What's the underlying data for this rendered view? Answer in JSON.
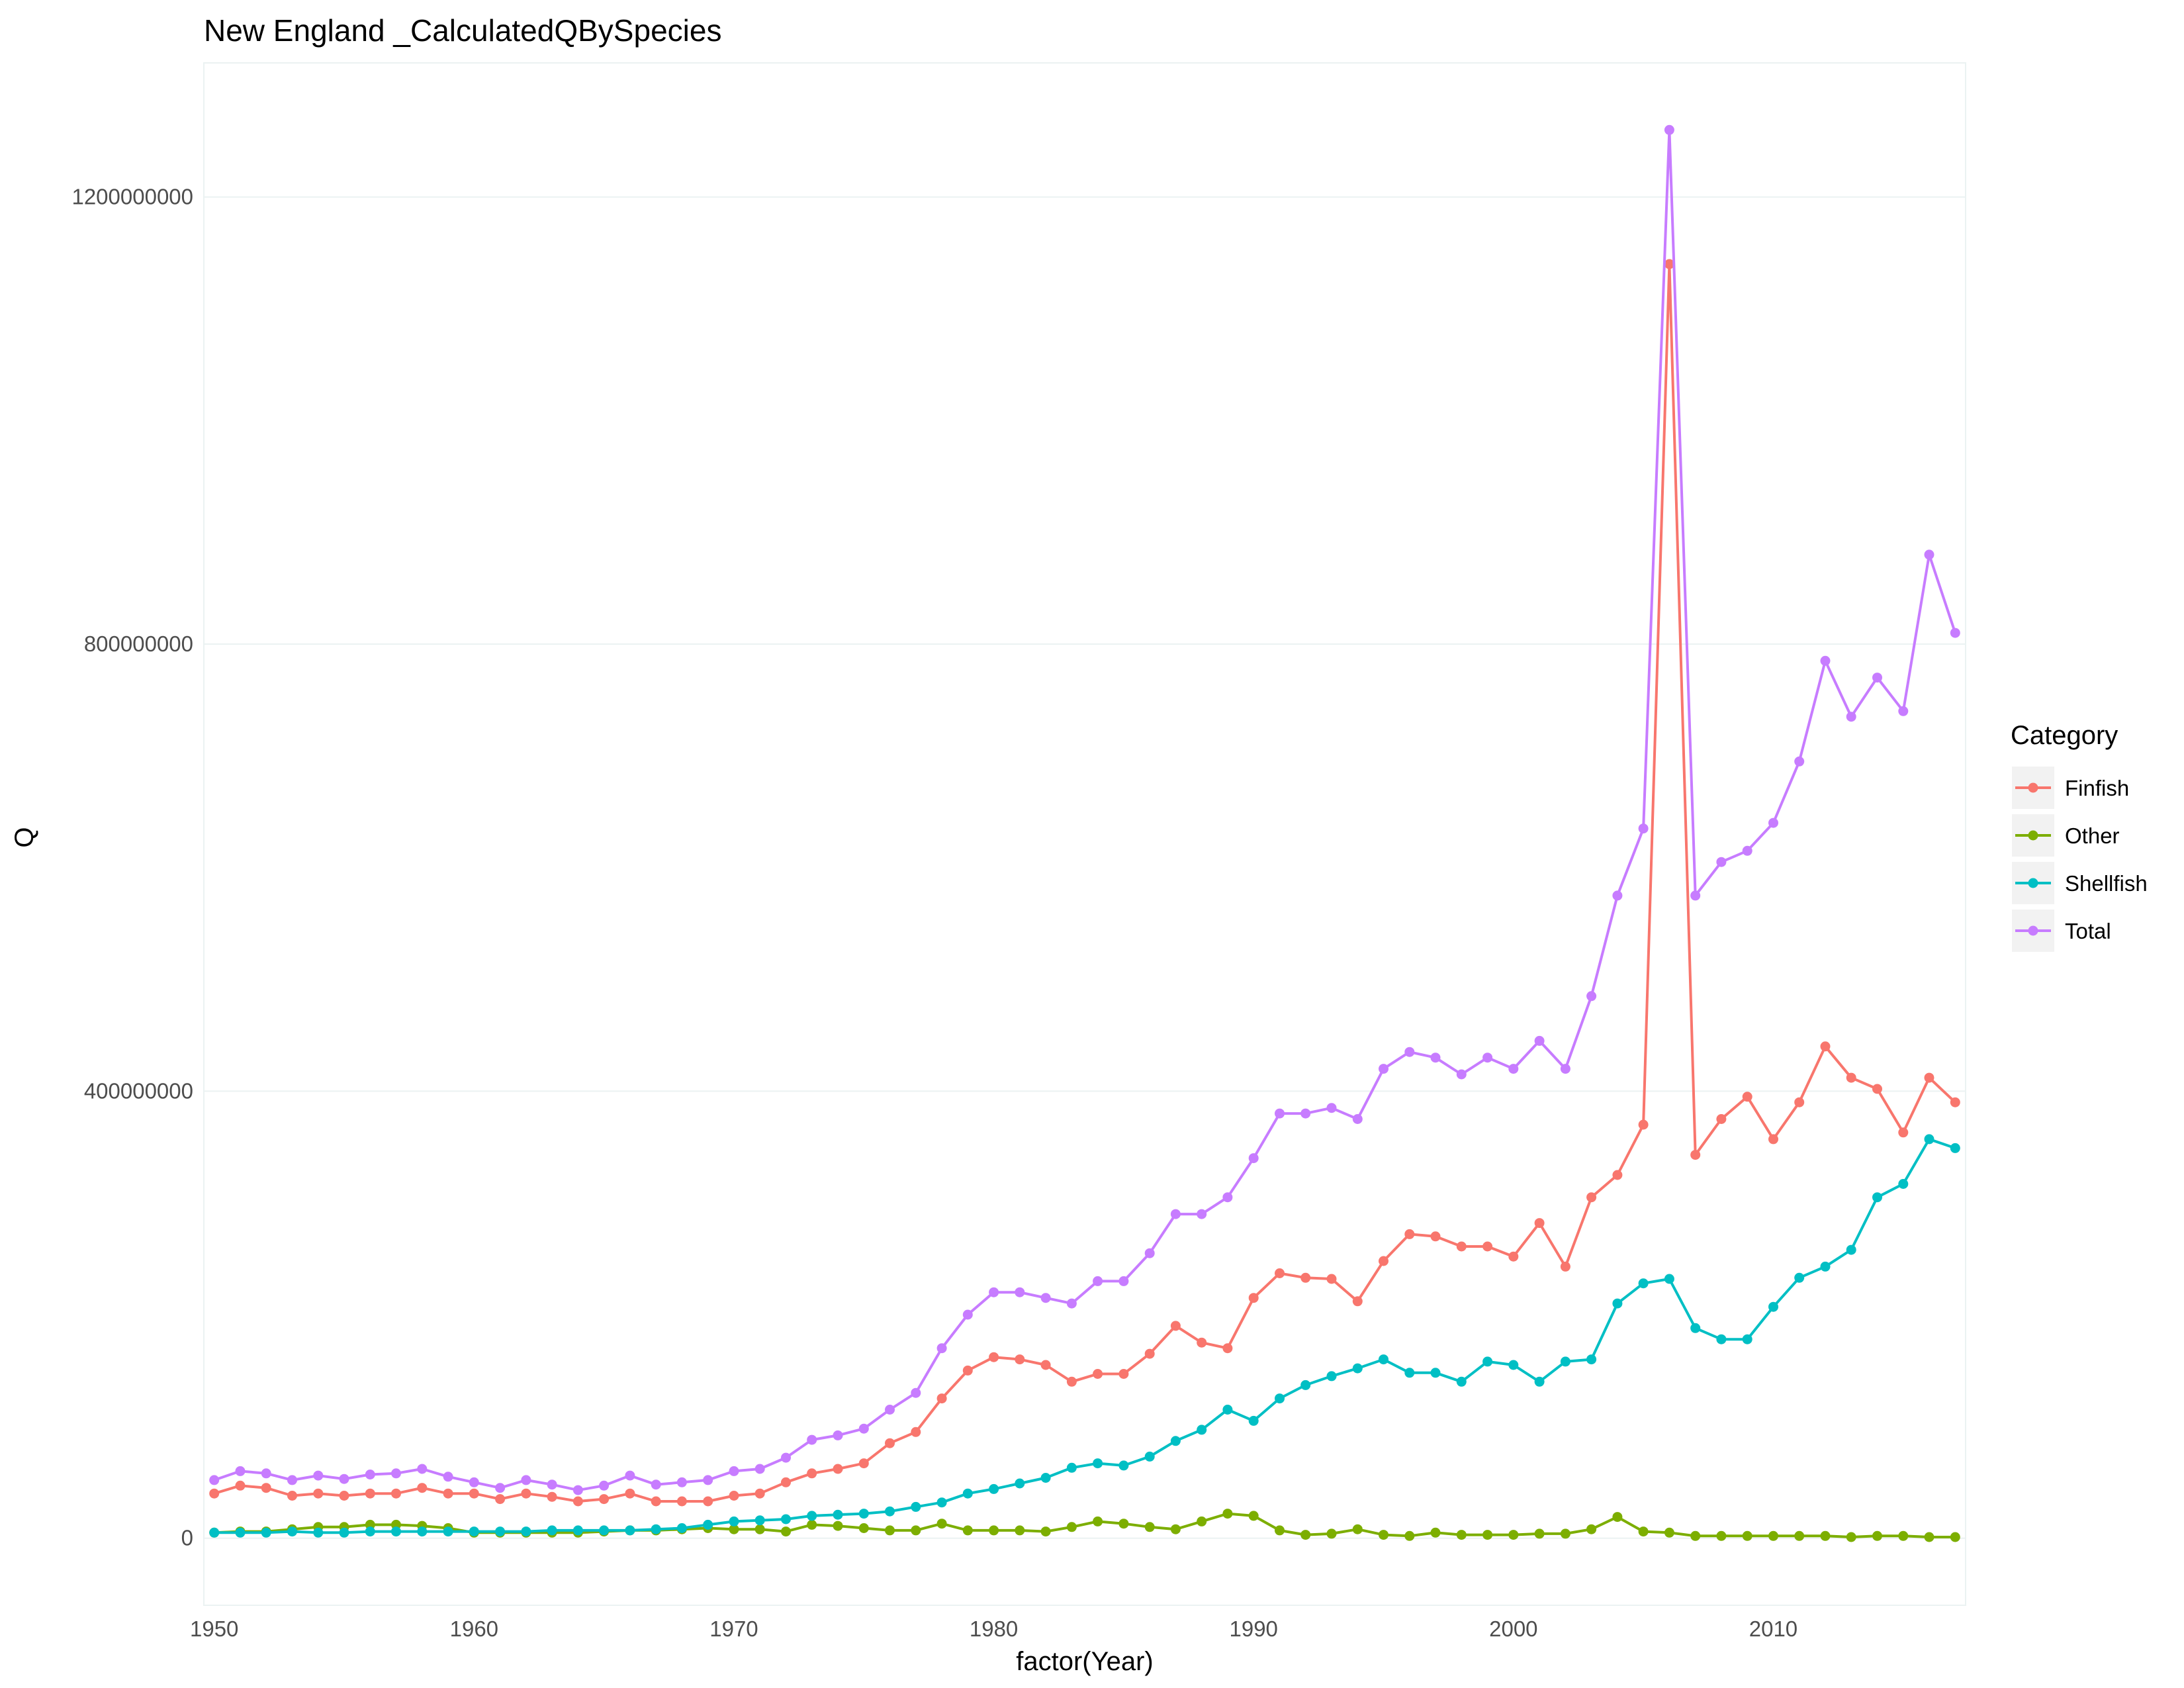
{
  "chart_data": {
    "type": "line",
    "title": "New England _CalculatedQBySpecies",
    "xlabel": "factor(Year)",
    "ylabel": "Q",
    "x_tick_labels": [
      "1950",
      "1960",
      "1970",
      "1980",
      "1990",
      "2000",
      "2010"
    ],
    "y_tick_labels": [
      "0",
      "400000000",
      "800000000",
      "1200000000"
    ],
    "y_ticks": [
      0,
      400000000,
      800000000,
      1200000000
    ],
    "xlim": [
      1949.6,
      2017.4
    ],
    "ylim": [
      -60000000,
      1320000000
    ],
    "grid": true,
    "legend": {
      "title": "Category",
      "position": "right"
    },
    "x": [
      1950,
      1951,
      1952,
      1953,
      1954,
      1955,
      1956,
      1957,
      1958,
      1959,
      1960,
      1961,
      1962,
      1963,
      1964,
      1965,
      1966,
      1967,
      1968,
      1969,
      1970,
      1971,
      1972,
      1973,
      1974,
      1975,
      1976,
      1977,
      1978,
      1979,
      1980,
      1981,
      1982,
      1983,
      1984,
      1985,
      1986,
      1987,
      1988,
      1989,
      1990,
      1991,
      1992,
      1993,
      1994,
      1995,
      1996,
      1997,
      1998,
      1999,
      2000,
      2001,
      2002,
      2003,
      2004,
      2005,
      2006,
      2007,
      2008,
      2009,
      2010,
      2011,
      2012,
      2013,
      2014,
      2015,
      2016,
      2017
    ],
    "series": [
      {
        "name": "Finfish",
        "color": "#F8766D",
        "values": [
          40000000,
          47000000,
          45000000,
          38000000,
          40000000,
          38000000,
          40000000,
          40000000,
          45000000,
          40000000,
          40000000,
          35000000,
          40000000,
          37000000,
          33000000,
          35000000,
          40000000,
          33000000,
          33000000,
          33000000,
          38000000,
          40000000,
          50000000,
          58000000,
          62000000,
          67000000,
          85000000,
          95000000,
          125000000,
          150000000,
          162000000,
          160000000,
          155000000,
          140000000,
          147000000,
          147000000,
          165000000,
          190000000,
          175000000,
          170000000,
          215000000,
          237000000,
          233000000,
          232000000,
          212000000,
          248000000,
          272000000,
          270000000,
          261000000,
          261000000,
          252000000,
          282000000,
          243000000,
          305000000,
          325000000,
          370000000,
          1140000000,
          343000000,
          375000000,
          395000000,
          357000000,
          390000000,
          440000000,
          412000000,
          402000000,
          363000000,
          412000000,
          390000000
        ]
      },
      {
        "name": "Other",
        "color": "#7CAE00",
        "values": [
          5000000,
          6000000,
          6000000,
          8000000,
          10000000,
          10000000,
          12000000,
          12000000,
          11000000,
          9000000,
          5000000,
          5000000,
          5000000,
          5000000,
          5000000,
          6000000,
          7000000,
          7000000,
          8000000,
          9000000,
          8000000,
          8000000,
          6000000,
          12000000,
          11000000,
          9000000,
          7000000,
          7000000,
          13000000,
          7000000,
          7000000,
          7000000,
          6000000,
          10000000,
          15000000,
          13000000,
          10000000,
          8000000,
          15000000,
          22000000,
          20000000,
          7000000,
          3000000,
          4000000,
          8000000,
          3000000,
          2000000,
          5000000,
          3000000,
          3000000,
          3000000,
          4000000,
          4000000,
          8000000,
          19000000,
          6000000,
          5000000,
          2000000,
          2000000,
          2000000,
          2000000,
          2000000,
          2000000,
          1000000,
          2000000,
          2000000,
          1000000,
          1000000
        ]
      },
      {
        "name": "Shellfish",
        "color": "#00BFC4",
        "values": [
          5000000,
          5000000,
          5000000,
          6000000,
          5000000,
          5000000,
          6000000,
          6000000,
          6000000,
          6000000,
          6000000,
          6000000,
          6000000,
          7000000,
          7000000,
          7000000,
          7000000,
          8000000,
          9000000,
          12000000,
          15000000,
          16000000,
          17000000,
          20000000,
          21000000,
          22000000,
          24000000,
          28000000,
          32000000,
          40000000,
          44000000,
          49000000,
          54000000,
          63000000,
          67000000,
          65000000,
          73000000,
          87000000,
          97000000,
          115000000,
          105000000,
          125000000,
          137000000,
          145000000,
          152000000,
          160000000,
          148000000,
          148000000,
          140000000,
          158000000,
          155000000,
          140000000,
          158000000,
          160000000,
          210000000,
          228000000,
          232000000,
          188000000,
          178000000,
          178000000,
          207000000,
          233000000,
          243000000,
          258000000,
          305000000,
          317000000,
          357000000,
          349000000
        ]
      },
      {
        "name": "Total",
        "color": "#C77CFF",
        "values": [
          52000000,
          60000000,
          58000000,
          52000000,
          56000000,
          53000000,
          57000000,
          58000000,
          62000000,
          55000000,
          50000000,
          45000000,
          52000000,
          48000000,
          43000000,
          47000000,
          56000000,
          48000000,
          50000000,
          52000000,
          60000000,
          62000000,
          72000000,
          88000000,
          92000000,
          98000000,
          115000000,
          130000000,
          170000000,
          200000000,
          220000000,
          220000000,
          215000000,
          210000000,
          230000000,
          230000000,
          255000000,
          290000000,
          290000000,
          305000000,
          340000000,
          380000000,
          380000000,
          385000000,
          375000000,
          420000000,
          435000000,
          430000000,
          415000000,
          430000000,
          420000000,
          445000000,
          420000000,
          485000000,
          575000000,
          635000000,
          1260000000,
          575000000,
          605000000,
          615000000,
          640000000,
          695000000,
          785000000,
          735000000,
          770000000,
          740000000,
          880000000,
          810000000
        ]
      }
    ]
  }
}
